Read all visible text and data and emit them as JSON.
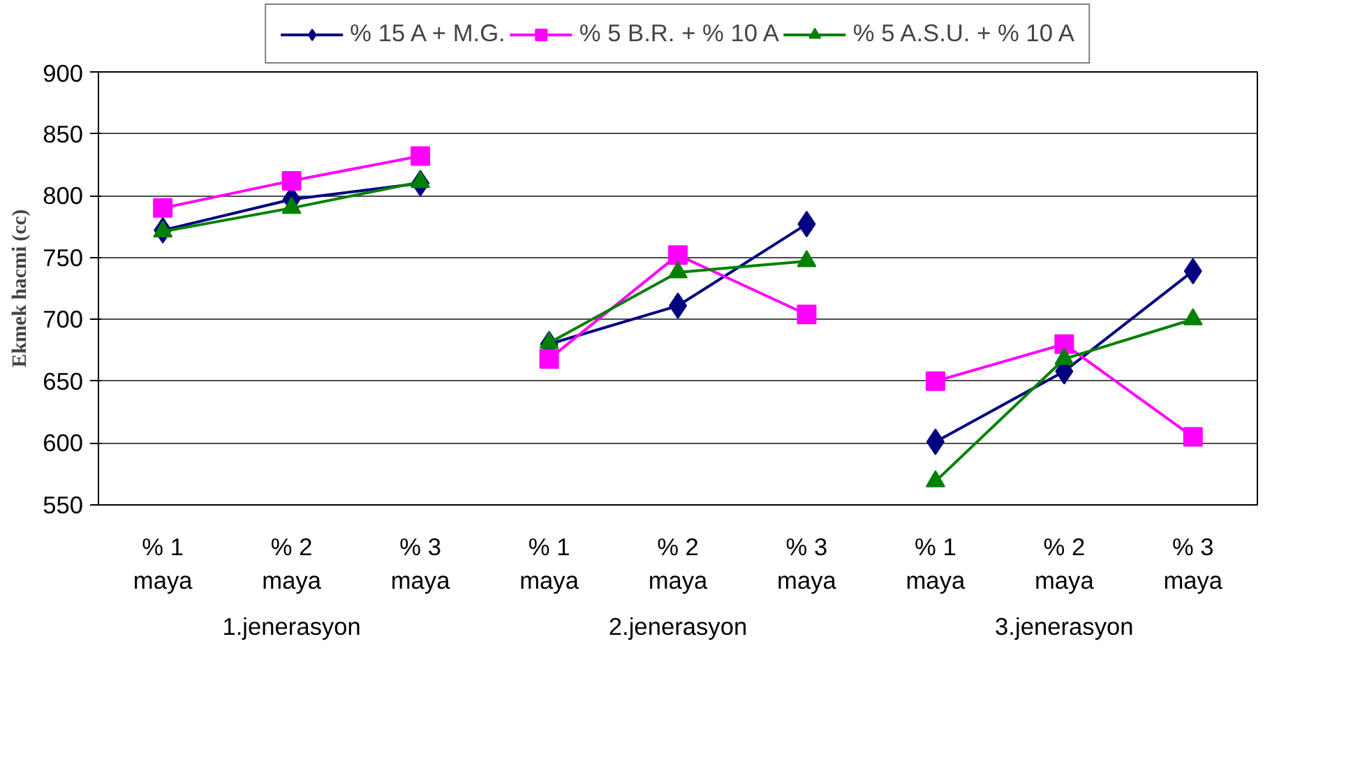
{
  "chart_data": {
    "type": "line",
    "ylabel": "Ekmek hacmi (cc)",
    "categories": [
      "% 1\nmaya",
      "% 2\nmaya",
      "% 3\nmaya",
      "% 1\nmaya",
      "% 2\nmaya",
      "% 3\nmaya",
      "% 1\nmaya",
      "% 2\nmaya",
      "% 3\nmaya"
    ],
    "annotations": [
      "1.jenerasyon",
      "2.jenerasyon",
      "3.jenerasyon"
    ],
    "ylim": [
      550,
      900
    ],
    "yticks": [
      550,
      600,
      650,
      700,
      750,
      800,
      850,
      900
    ],
    "grid": "y",
    "legend": "top",
    "series": [
      {
        "name": "% 15 A + M.G.",
        "color": "#000080",
        "marker": "diamond",
        "values": [
          772,
          797,
          810,
          null,
          null,
          null,
          null,
          null,
          null
        ]
      },
      {
        "name": "% 5 B.R. + % 10 A",
        "color": "#ff00ff",
        "marker": "square",
        "values": [
          790,
          812,
          832,
          null,
          null,
          null,
          null,
          null,
          null
        ]
      },
      {
        "name": "% 5 A.S.U. + % 10 A",
        "color": "#008000",
        "marker": "triangle",
        "values": [
          771,
          790,
          811,
          null,
          null,
          null,
          null,
          null,
          null
        ]
      },
      {
        "color": "#000080",
        "marker": "diamond",
        "values": [
          null,
          null,
          null,
          680,
          711,
          777,
          null,
          null,
          null
        ]
      },
      {
        "color": "#ff00ff",
        "marker": "square",
        "values": [
          null,
          null,
          null,
          668,
          752,
          704,
          null,
          null,
          null
        ]
      },
      {
        "color": "#008000",
        "marker": "triangle",
        "values": [
          null,
          null,
          null,
          681,
          738,
          747,
          null,
          null,
          null
        ]
      },
      {
        "color": "#000080",
        "marker": "diamond",
        "values": [
          null,
          null,
          null,
          null,
          null,
          null,
          601,
          658,
          739
        ]
      },
      {
        "color": "#ff00ff",
        "marker": "square",
        "values": [
          null,
          null,
          null,
          null,
          null,
          null,
          650,
          680,
          605
        ]
      },
      {
        "color": "#008000",
        "marker": "triangle",
        "values": [
          null,
          null,
          null,
          null,
          null,
          null,
          569,
          668,
          700
        ]
      }
    ]
  }
}
